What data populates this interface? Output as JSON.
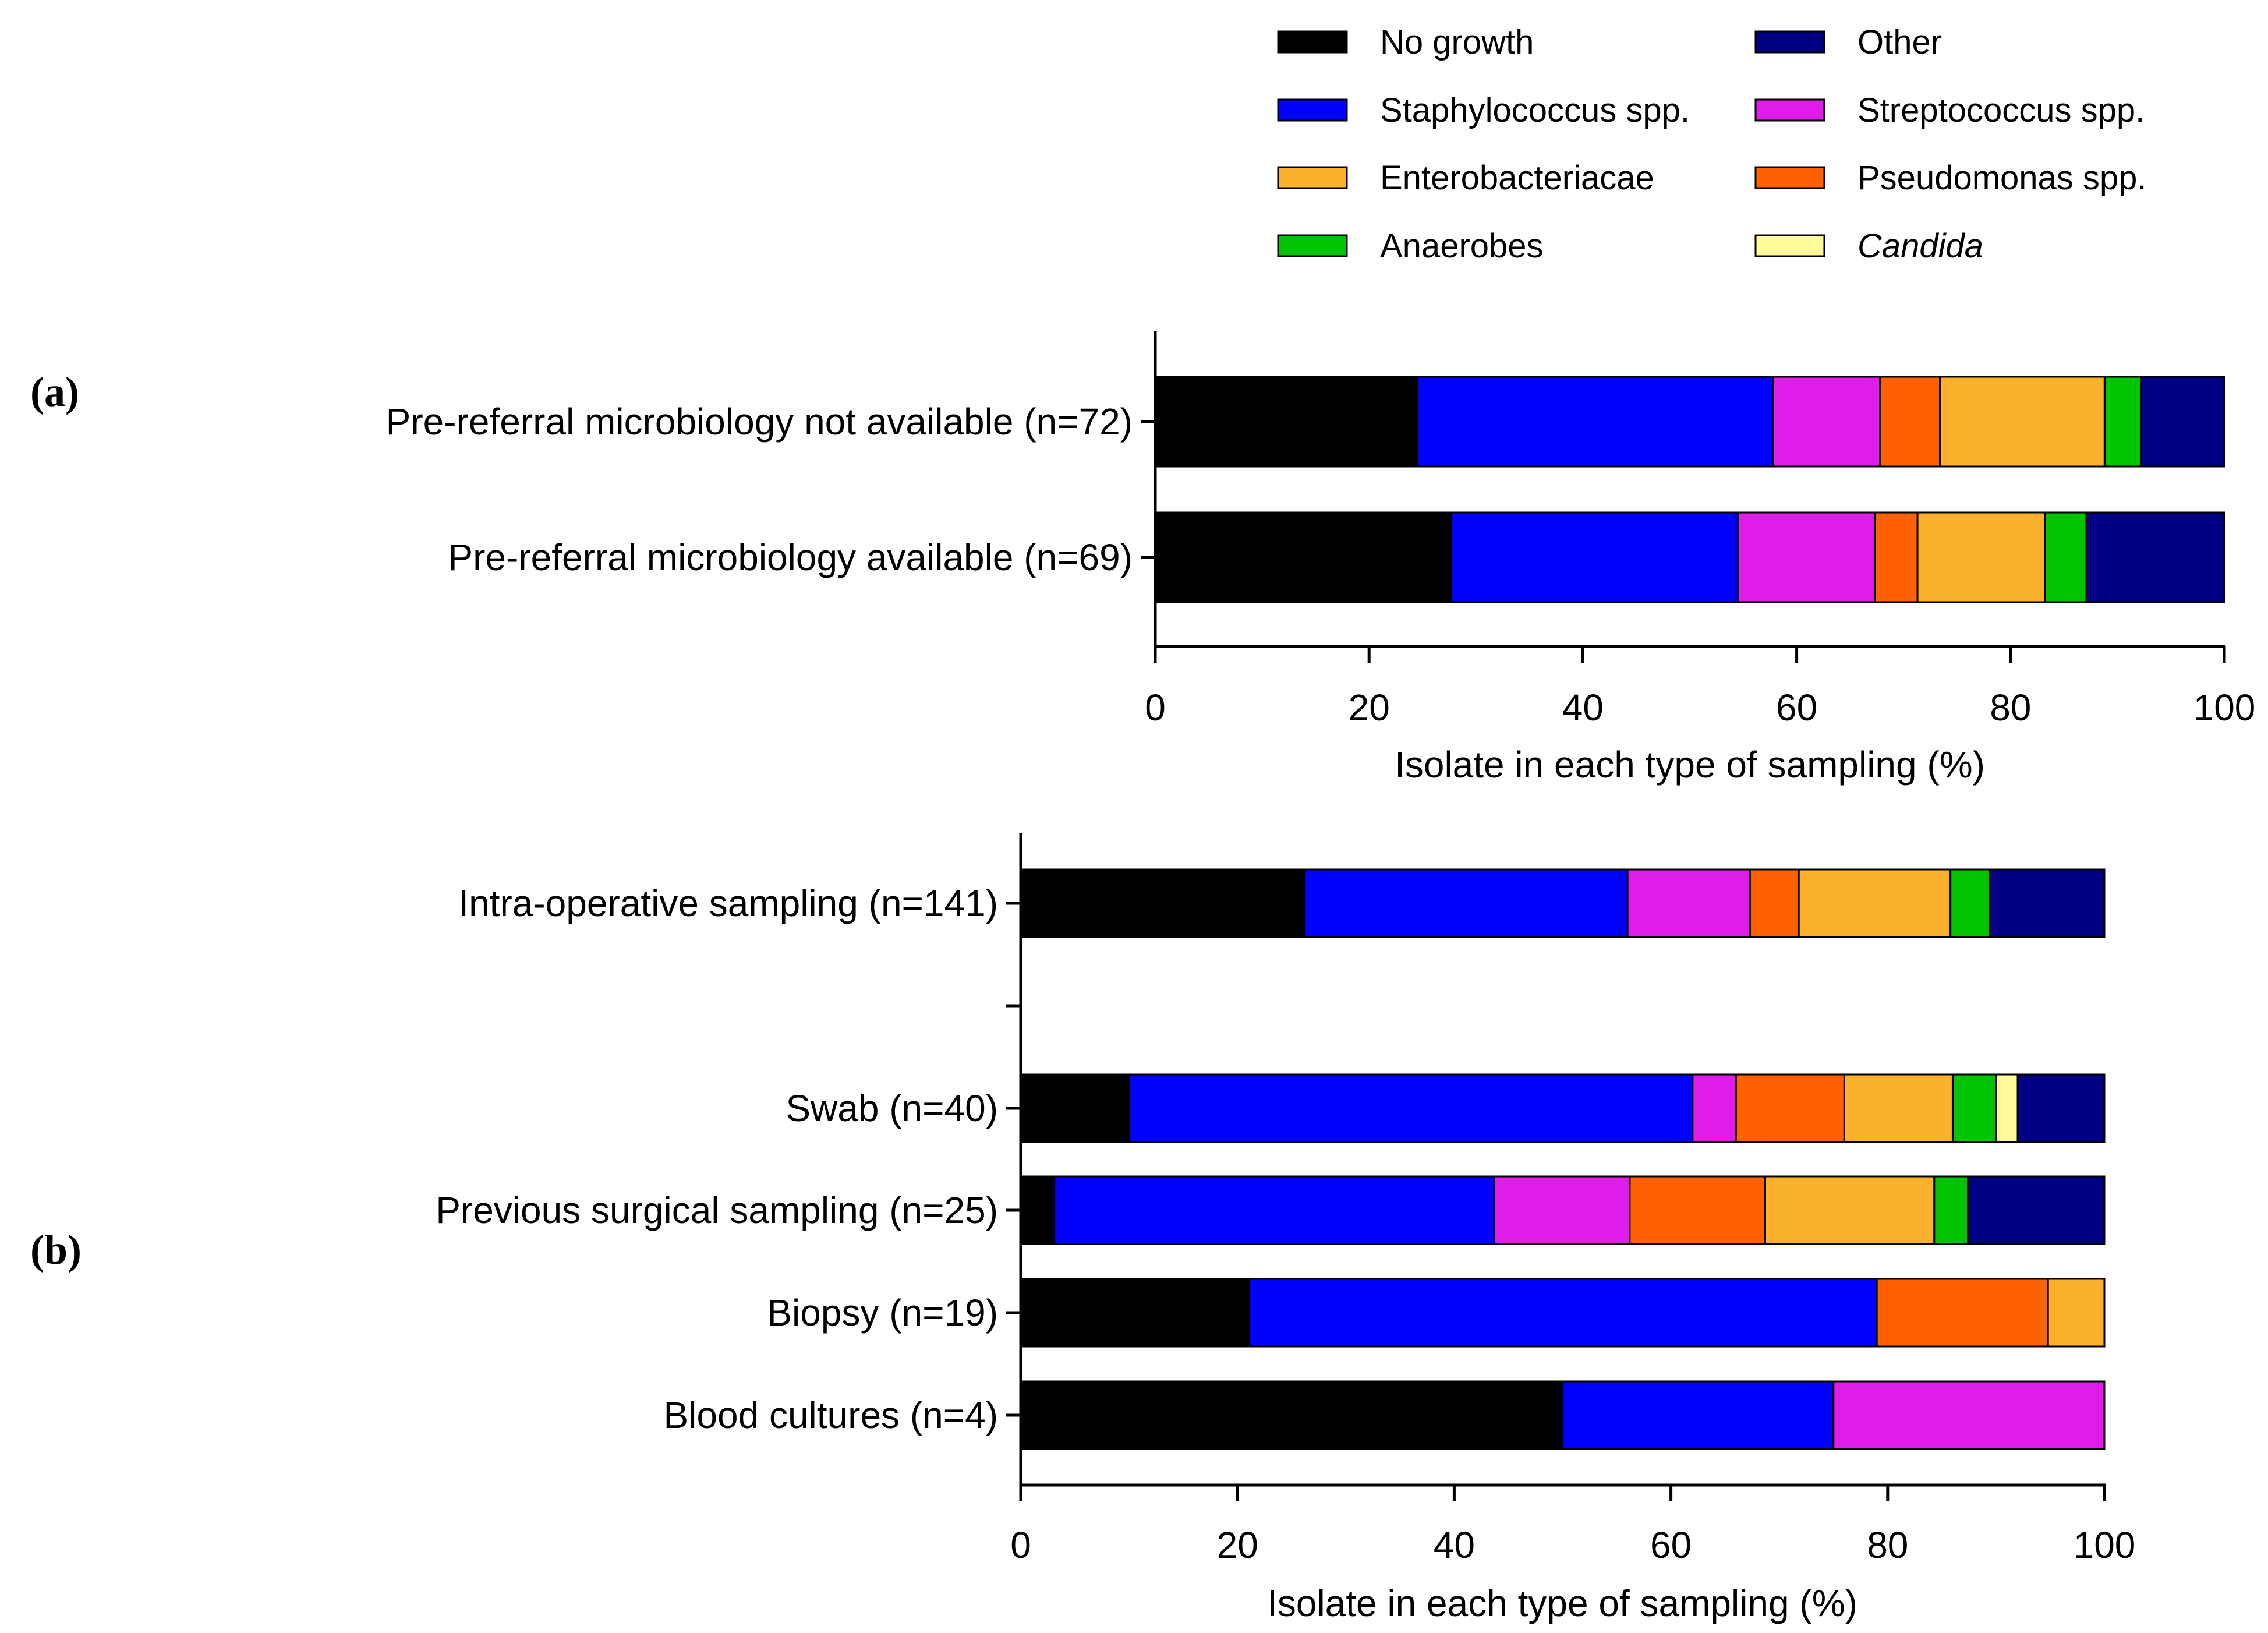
{
  "legend": {
    "items": [
      {
        "key": "no_growth",
        "label": "No growth",
        "color": "#000000",
        "italic": false
      },
      {
        "key": "staph",
        "label": "Staphylococcus spp.",
        "color": "#0000FF",
        "italic": false
      },
      {
        "key": "entero",
        "label": "Enterobacteriacae",
        "color": "#FBB12C",
        "italic": false
      },
      {
        "key": "anaerobes",
        "label": "Anaerobes",
        "color": "#00C400",
        "italic": false
      },
      {
        "key": "other",
        "label": "Other",
        "color": "#000085",
        "italic": false
      },
      {
        "key": "strep",
        "label": "Streptococcus spp.",
        "color": "#E01CE8",
        "italic": false
      },
      {
        "key": "pseudo",
        "label": "Pseudomonas spp.",
        "color": "#FF6100",
        "italic": false
      },
      {
        "key": "candida",
        "label": "Candida",
        "color": "#FFF99A",
        "italic": true
      }
    ]
  },
  "chart_data": [
    {
      "panel": "(a)",
      "type": "bar",
      "orientation": "horizontal",
      "stacked": true,
      "xlabel": "Isolate in each type of sampling (%)",
      "xlim": [
        0,
        100
      ],
      "xticks": [
        0,
        20,
        40,
        60,
        80,
        100
      ],
      "stack_order": [
        "no_growth",
        "staph",
        "strep",
        "pseudo",
        "entero",
        "anaerobes",
        "candida",
        "other"
      ],
      "categories": [
        "Pre-referral microbiology not available (n=72)",
        "Pre-referral microbiology available (n=69)"
      ],
      "series": [
        {
          "key": "no_growth",
          "name": "No growth",
          "values": [
            24.5,
            27.7
          ]
        },
        {
          "key": "staph",
          "name": "Staphylococcus spp.",
          "values": [
            33.3,
            26.8
          ]
        },
        {
          "key": "strep",
          "name": "Streptococcus spp.",
          "values": [
            10.0,
            12.8
          ]
        },
        {
          "key": "pseudo",
          "name": "Pseudomonas spp.",
          "values": [
            5.6,
            4.0
          ]
        },
        {
          "key": "entero",
          "name": "Enterobacteriacae",
          "values": [
            15.4,
            11.9
          ]
        },
        {
          "key": "anaerobes",
          "name": "Anaerobes",
          "values": [
            3.4,
            3.9
          ]
        },
        {
          "key": "candida",
          "name": "Candida",
          "values": [
            0,
            0
          ]
        },
        {
          "key": "other",
          "name": "Other",
          "values": [
            7.8,
            12.9
          ]
        }
      ]
    },
    {
      "panel": "(b)",
      "type": "bar",
      "orientation": "horizontal",
      "stacked": true,
      "xlabel": "Isolate in each type of sampling (%)",
      "xlim": [
        0,
        100
      ],
      "xticks": [
        0,
        20,
        40,
        60,
        80,
        100
      ],
      "stack_order": [
        "no_growth",
        "staph",
        "strep",
        "pseudo",
        "entero",
        "anaerobes",
        "candida",
        "other"
      ],
      "categories": [
        "Intra-operative sampling (n=141)",
        "Swab (n=40)",
        "Previous surgical sampling (n=25)",
        "Biopsy (n=19)",
        "Blood cultures (n=4)"
      ],
      "series": [
        {
          "key": "no_growth",
          "name": "No growth",
          "values": [
            26.2,
            10.0,
            3.1,
            21.1,
            50.0
          ]
        },
        {
          "key": "staph",
          "name": "Staphylococcus spp.",
          "values": [
            29.8,
            52.0,
            40.6,
            57.9,
            25.0
          ]
        },
        {
          "key": "strep",
          "name": "Streptococcus spp.",
          "values": [
            11.3,
            4.0,
            12.5,
            0,
            25.0
          ]
        },
        {
          "key": "pseudo",
          "name": "Pseudomonas spp.",
          "values": [
            4.5,
            10.0,
            12.5,
            15.8,
            0
          ]
        },
        {
          "key": "entero",
          "name": "Enterobacteriacae",
          "values": [
            14.0,
            10.0,
            15.6,
            5.2,
            0
          ]
        },
        {
          "key": "anaerobes",
          "name": "Anaerobes",
          "values": [
            3.6,
            4.0,
            3.1,
            0,
            0
          ]
        },
        {
          "key": "candida",
          "name": "Candida",
          "values": [
            0,
            2.0,
            0,
            0,
            0
          ]
        },
        {
          "key": "other",
          "name": "Other",
          "values": [
            10.6,
            8.0,
            12.6,
            0,
            0
          ]
        }
      ]
    }
  ]
}
